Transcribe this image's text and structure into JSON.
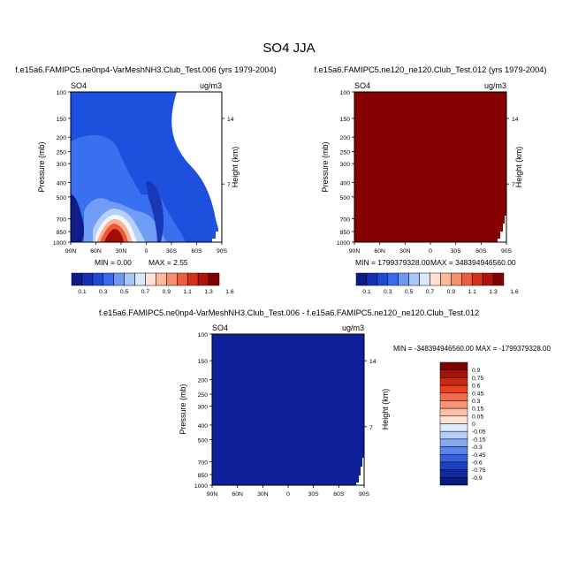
{
  "figure": {
    "title": "SO4 JJA"
  },
  "chart_data": [
    {
      "type": "heatmap",
      "panel": "top-left",
      "title": "f.e15a6.FAMIPC5.ne0np4-VarMeshNH3.Club_Test.006 (yrs 1979-2004)",
      "variable_label": "SO4",
      "units_label": "ug/m3",
      "ylabel": "Pressure (mb)",
      "right_label": "Height (km)",
      "y_ticks": [
        "100",
        "150",
        "200",
        "250",
        "300",
        "400",
        "500",
        "700",
        "850",
        "1000"
      ],
      "height_ticks": [
        "14",
        "7"
      ],
      "x_ticks": [
        "90N",
        "60N",
        "30N",
        "0",
        "30S",
        "60S",
        "90S"
      ],
      "min_label": "MIN =   0.00",
      "max_label": "MAX =   2.55",
      "xlim": [
        90,
        -90
      ],
      "ylim": [
        1000,
        100
      ]
    },
    {
      "type": "heatmap",
      "panel": "top-right",
      "title": "f.e15a6.FAMIPC5.ne120_ne120.Club_Test.012 (yrs 1979-2004)",
      "variable_label": "SO4",
      "units_label": "ug/m3",
      "ylabel": "Pressure (mb)",
      "right_label": "Height (km)",
      "y_ticks": [
        "100",
        "150",
        "200",
        "250",
        "300",
        "400",
        "500",
        "700",
        "850",
        "1000"
      ],
      "height_ticks": [
        "14",
        "7"
      ],
      "x_ticks": [
        "90N",
        "60N",
        "30N",
        "0",
        "30S",
        "60S",
        "90S"
      ],
      "min_label": "MIN = 1799379328.00",
      "max_label": "MAX = 348394946560.00",
      "xlim": [
        90,
        -90
      ],
      "ylim": [
        1000,
        100
      ]
    },
    {
      "type": "heatmap",
      "panel": "bottom",
      "title": "f.e15a6.FAMIPC5.ne0np4-VarMeshNH3.Club_Test.006 - f.e15a6.FAMIPC5.ne120_ne120.Club_Test.012",
      "variable_label": "SO4",
      "units_label": "ug/m3",
      "ylabel": "Pressure (mb)",
      "right_label": "Height (km)",
      "y_ticks": [
        "100",
        "150",
        "200",
        "250",
        "300",
        "400",
        "500",
        "700",
        "850",
        "1000"
      ],
      "height_ticks": [
        "14",
        "7"
      ],
      "x_ticks": [
        "90N",
        "60N",
        "30N",
        "0",
        "30S",
        "60S",
        "90S"
      ],
      "minmax_label": "MIN = -348394946560.00  MAX = -1799379328.00",
      "xlim": [
        90,
        -90
      ],
      "ylim": [
        1000,
        100
      ]
    }
  ],
  "colorbars": {
    "horizontal": {
      "labels": [
        "0.1",
        "0.3",
        "0.5",
        "0.7",
        "0.9",
        "1.1",
        "1.3",
        "1.6"
      ],
      "colors": [
        "#0d1a8a",
        "#1530b4",
        "#1e48d8",
        "#3a68f0",
        "#6f97f5",
        "#a8c6fa",
        "#dae8fc",
        "#ffe0d2",
        "#fcb99c",
        "#f78f6c",
        "#ef5c3a",
        "#d8301a",
        "#b01208",
        "#800000"
      ]
    },
    "vertical": {
      "labels": [
        "0.9",
        "0.75",
        "0.6",
        "0.45",
        "0.3",
        "0.15",
        "0.05",
        "0",
        "-0.05",
        "-0.15",
        "-0.3",
        "-0.45",
        "-0.6",
        "-0.75",
        "-0.9"
      ],
      "colors": [
        "#800000",
        "#a81008",
        "#c82810",
        "#e84020",
        "#f56a48",
        "#f99474",
        "#fcbfa4",
        "#fee4d6",
        "#dfeafc",
        "#b5cdf9",
        "#87a9f4",
        "#5a83ec",
        "#345fde",
        "#1d40c2",
        "#102a9c",
        "#0a1a80"
      ]
    }
  },
  "colors": {
    "deep_blue": "#0f1f99",
    "dark_red": "#850000"
  }
}
